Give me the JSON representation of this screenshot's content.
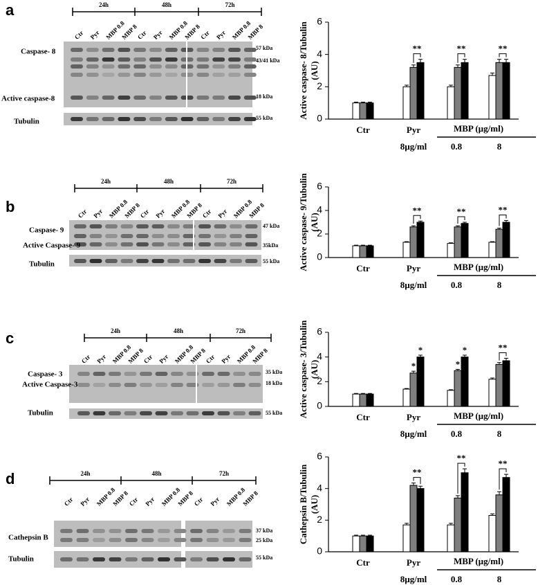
{
  "blots": [
    {
      "panel": "a",
      "times": [
        "24h",
        "48h",
        "72h"
      ],
      "lanes": [
        "Ctr",
        "Pyr",
        "MBP 0.8",
        "MBP 8",
        "Ctr",
        "Pyr",
        "MBP 0.8",
        "MBP 8",
        "Ctr",
        "Pyr",
        "MBP 0.8",
        "MBP 8"
      ],
      "bands": [
        "Caspase- 8",
        "Active caspase-8"
      ],
      "loading": "Tubulin",
      "markers": [
        "57 kDa",
        "43/41 kDa",
        "18 kDa",
        "55 kDa"
      ]
    },
    {
      "panel": "b",
      "times": [
        "24h",
        "48h",
        "72h"
      ],
      "lanes": [
        "Ctr",
        "Pyr",
        "MBP 0.8",
        "MBP 8",
        "Ctr",
        "Pyr",
        "MBP 0.8",
        "MBP 8",
        "Ctr",
        "Pyr",
        "MBP 0.8",
        "MBP 8"
      ],
      "bands": [
        "Caspase- 9",
        "Active Caspase- 9"
      ],
      "loading": "Tubulin",
      "markers": [
        "47 kDa",
        "35kDa",
        "55 kDa"
      ]
    },
    {
      "panel": "c",
      "times": [
        "24h",
        "48h",
        "72h"
      ],
      "lanes": [
        "Ctr",
        "Pyr",
        "MBP 0.8",
        "MBP 8",
        "Ctr",
        "Pyr",
        "MBP 0.8",
        "MBP 8",
        "Ctr",
        "Pyr",
        "MBP 0.8",
        "MBP 8"
      ],
      "bands": [
        "Caspase- 3",
        "Active Caspase-3"
      ],
      "loading": "Tubulin",
      "markers": [
        "35 kDa",
        "18 kDa",
        "55 kDa"
      ]
    },
    {
      "panel": "d",
      "times": [
        "24h",
        "48h",
        "72h"
      ],
      "lanes": [
        "Ctr",
        "Pyr",
        "MBP 0.8",
        "MBP 8",
        "Ctr",
        "Pyr",
        "MBP 0.8",
        "MBP 8",
        "Ctr",
        "Pyr",
        "MBP 0.8",
        "MBP 8"
      ],
      "bands": [
        "Cathepsin B"
      ],
      "loading": "Tubulin",
      "markers": [
        "37 kDa",
        "25 kDa",
        "55 kDa"
      ]
    }
  ],
  "chart_data": [
    {
      "type": "bar",
      "ylabel": "Active caspase- 8/Tubulin",
      "ylabel_unit": "(AU)",
      "categories": [
        "Ctr",
        "Pyr",
        "0.8",
        "8"
      ],
      "pyr_dose": "8µg/ml",
      "group_label": "MBP (µg/ml)",
      "ylim": [
        0,
        6
      ],
      "yticks": [
        0,
        2,
        4,
        6
      ],
      "series": [
        {
          "color": "#ffffff",
          "values": [
            1.0,
            2.0,
            2.0,
            2.7
          ],
          "errors": [
            0.05,
            0.1,
            0.1,
            0.15
          ]
        },
        {
          "color": "#7f7f7f",
          "values": [
            1.0,
            3.2,
            3.2,
            3.5
          ],
          "errors": [
            0.05,
            0.15,
            0.15,
            0.2
          ]
        },
        {
          "color": "#000000",
          "values": [
            1.0,
            3.5,
            3.5,
            3.5
          ],
          "errors": [
            0.05,
            0.2,
            0.2,
            0.2
          ]
        }
      ],
      "annotations": [
        {
          "category": 1,
          "series": [
            1,
            2
          ],
          "label": "**"
        },
        {
          "category": 2,
          "series": [
            1,
            2
          ],
          "label": "**"
        },
        {
          "category": 3,
          "series": [
            1,
            2
          ],
          "label": "**"
        }
      ]
    },
    {
      "type": "bar",
      "ylabel": "Active caspase- 9/Tubulin",
      "ylabel_unit": "(AU)",
      "categories": [
        "Ctr",
        "Pyr",
        "0.8",
        "8"
      ],
      "pyr_dose": "8µg/ml",
      "group_label": "MBP (µg/ml)",
      "ylim": [
        0,
        6
      ],
      "yticks": [
        0,
        2,
        4,
        6
      ],
      "series": [
        {
          "color": "#ffffff",
          "values": [
            1.0,
            1.3,
            1.2,
            1.3
          ],
          "errors": [
            0.05,
            0.05,
            0.05,
            0.05
          ]
        },
        {
          "color": "#7f7f7f",
          "values": [
            1.0,
            2.6,
            2.6,
            2.4
          ],
          "errors": [
            0.05,
            0.1,
            0.1,
            0.1
          ]
        },
        {
          "color": "#000000",
          "values": [
            1.0,
            3.0,
            2.9,
            3.0
          ],
          "errors": [
            0.05,
            0.1,
            0.1,
            0.15
          ]
        }
      ],
      "annotations": [
        {
          "category": 1,
          "series": [
            1,
            2
          ],
          "label": "**"
        },
        {
          "category": 2,
          "series": [
            1,
            2
          ],
          "label": "**"
        },
        {
          "category": 3,
          "series": [
            1,
            2
          ],
          "label": "**"
        }
      ]
    },
    {
      "type": "bar",
      "ylabel": "Active caspase- 3/Tubulin",
      "ylabel_unit": "(AU)",
      "categories": [
        "Ctr",
        "Pyr",
        "0.8",
        "8"
      ],
      "pyr_dose": "8µg/ml",
      "group_label": "MBP (µg/ml)",
      "ylim": [
        0,
        6
      ],
      "yticks": [
        0,
        2,
        4,
        6
      ],
      "series": [
        {
          "color": "#ffffff",
          "values": [
            1.0,
            1.4,
            1.3,
            2.2
          ],
          "errors": [
            0.05,
            0.05,
            0.05,
            0.1
          ]
        },
        {
          "color": "#7f7f7f",
          "values": [
            1.0,
            2.7,
            2.9,
            3.4
          ],
          "errors": [
            0.05,
            0.15,
            0.1,
            0.15
          ]
        },
        {
          "color": "#000000",
          "values": [
            1.0,
            4.0,
            4.0,
            3.7
          ],
          "errors": [
            0.05,
            0.15,
            0.15,
            0.2
          ]
        }
      ],
      "annotations": [
        {
          "category": 1,
          "series": [
            1
          ],
          "label": "*"
        },
        {
          "category": 1,
          "series": [
            2
          ],
          "label": "*"
        },
        {
          "category": 2,
          "series": [
            1
          ],
          "label": "*"
        },
        {
          "category": 2,
          "series": [
            2
          ],
          "label": "*"
        },
        {
          "category": 3,
          "series": [
            1,
            2
          ],
          "label": "**"
        }
      ]
    },
    {
      "type": "bar",
      "ylabel": "Cathepsin B/Tubulin",
      "ylabel_unit": "(AU)",
      "categories": [
        "Ctr",
        "Pyr",
        "0.8",
        "8"
      ],
      "pyr_dose": "8µg/ml",
      "group_label": "MBP (µg/ml)",
      "ylim": [
        0,
        6
      ],
      "yticks": [
        0,
        2,
        4,
        6
      ],
      "series": [
        {
          "color": "#ffffff",
          "values": [
            1.0,
            1.7,
            1.7,
            2.3
          ],
          "errors": [
            0.05,
            0.1,
            0.1,
            0.1
          ]
        },
        {
          "color": "#7f7f7f",
          "values": [
            1.0,
            4.2,
            3.4,
            3.6
          ],
          "errors": [
            0.05,
            0.15,
            0.15,
            0.2
          ]
        },
        {
          "color": "#000000",
          "values": [
            1.0,
            4.0,
            5.0,
            4.7
          ],
          "errors": [
            0.05,
            0.15,
            0.25,
            0.2
          ]
        }
      ],
      "annotations": [
        {
          "category": 1,
          "series": [
            1,
            2
          ],
          "label": "**"
        },
        {
          "category": 2,
          "series": [
            1,
            2
          ],
          "label": "**"
        },
        {
          "category": 3,
          "series": [
            1,
            2
          ],
          "label": "**"
        }
      ]
    }
  ]
}
